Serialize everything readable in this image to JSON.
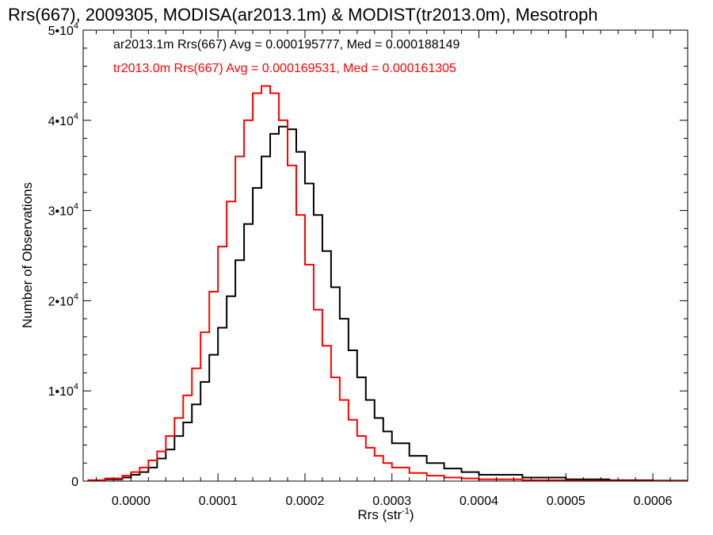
{
  "chart_data": {
    "type": "line",
    "title": "Rrs(667), 2009305, MODISA(ar2013.1m) & MODIST(tr2013.0m), Mesotroph",
    "xlabel": {
      "main": "Rrs (str",
      "sup": "-1",
      "close": ")"
    },
    "ylabel": "Number of Observations",
    "xlim": [
      -5.5e-05,
      0.00064
    ],
    "ylim": [
      0,
      50000
    ],
    "grid": false,
    "legend_position": "top-left",
    "x_ticks": [
      {
        "value": 0.0,
        "label": "0.0000"
      },
      {
        "value": 0.0001,
        "label": "0.0001"
      },
      {
        "value": 0.0002,
        "label": "0.0002"
      },
      {
        "value": 0.0003,
        "label": "0.0003"
      },
      {
        "value": 0.0004,
        "label": "0.0004"
      },
      {
        "value": 0.0005,
        "label": "0.0005"
      },
      {
        "value": 0.0006,
        "label": "0.0006"
      }
    ],
    "y_ticks": [
      {
        "value": 0,
        "mant": "0",
        "exp": ""
      },
      {
        "value": 10000,
        "mant": "1•10",
        "exp": "4"
      },
      {
        "value": 20000,
        "mant": "2•10",
        "exp": "4"
      },
      {
        "value": 30000,
        "mant": "3•10",
        "exp": "4"
      },
      {
        "value": 40000,
        "mant": "4•10",
        "exp": "4"
      },
      {
        "value": 50000,
        "mant": "5•10",
        "exp": "4"
      }
    ],
    "series": [
      {
        "name": "ar2013.1m Rrs(667) Avg = 0.000195777, Med = 0.000188149",
        "color": "#000000",
        "x": [
          -5e-05,
          -3e-05,
          -1e-05,
          0.0,
          1e-05,
          2e-05,
          3e-05,
          4e-05,
          5e-05,
          6e-05,
          7e-05,
          8e-05,
          9e-05,
          0.0001,
          0.00011,
          0.00012,
          0.00013,
          0.00014,
          0.00015,
          0.00016,
          0.00017,
          0.00018,
          0.00019,
          0.0002,
          0.00021,
          0.00022,
          0.00023,
          0.00024,
          0.00025,
          0.00026,
          0.00027,
          0.00028,
          0.00029,
          0.0003,
          0.00032,
          0.00034,
          0.00036,
          0.00038,
          0.0004,
          0.00045,
          0.0005,
          0.00055,
          0.0006,
          0.00064
        ],
        "y": [
          100,
          200,
          400,
          700,
          1000,
          1500,
          2500,
          3500,
          5000,
          6500,
          8500,
          11000,
          14000,
          17000,
          20500,
          24500,
          28500,
          32500,
          36000,
          38500,
          39300,
          39000,
          36500,
          33000,
          29500,
          25500,
          21500,
          18000,
          14500,
          11500,
          9000,
          7000,
          5500,
          4200,
          2800,
          2000,
          1400,
          1000,
          700,
          400,
          200,
          100,
          50,
          30
        ]
      },
      {
        "name": "tr2013.0m Rrs(667) Avg = 0.000169531, Med = 0.000161305",
        "color": "#ff0000",
        "x": [
          -5e-05,
          -3e-05,
          -1e-05,
          0.0,
          1e-05,
          2e-05,
          3e-05,
          4e-05,
          5e-05,
          6e-05,
          7e-05,
          8e-05,
          9e-05,
          0.0001,
          0.00011,
          0.00012,
          0.00013,
          0.00014,
          0.00015,
          0.00016,
          0.00017,
          0.00018,
          0.00019,
          0.0002,
          0.00021,
          0.00022,
          0.00023,
          0.00024,
          0.00025,
          0.00026,
          0.00027,
          0.00028,
          0.00029,
          0.0003,
          0.00032,
          0.00034,
          0.00036,
          0.00038,
          0.0004,
          0.00045,
          0.0005,
          0.00055,
          0.0006,
          0.00064
        ],
        "y": [
          100,
          300,
          600,
          1000,
          1500,
          2300,
          3300,
          5000,
          7000,
          9500,
          12500,
          16500,
          21000,
          26000,
          31000,
          36000,
          40000,
          43000,
          43800,
          43000,
          40000,
          35000,
          29500,
          24000,
          19000,
          15000,
          11500,
          9000,
          6800,
          5000,
          3700,
          2800,
          2000,
          1500,
          900,
          600,
          400,
          300,
          200,
          100,
          60,
          30,
          20,
          10
        ]
      }
    ]
  }
}
